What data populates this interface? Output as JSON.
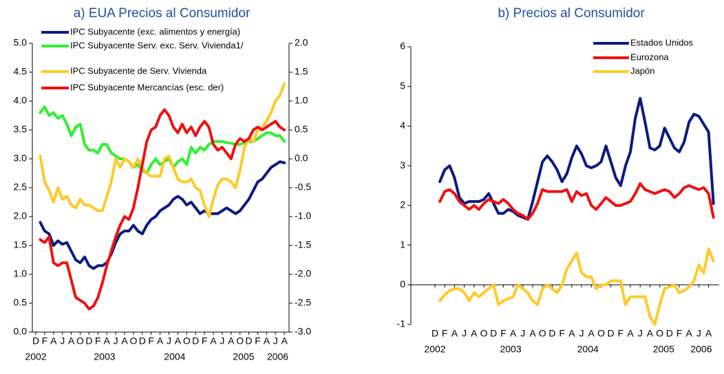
{
  "chart_data": [
    {
      "type": "line",
      "title": "a) EUA Precios al Consumidor",
      "legend": "upper left",
      "categories": [
        "D",
        null,
        "F",
        null,
        "A",
        null,
        "J",
        null,
        "A",
        null,
        "O",
        null,
        "D",
        null,
        "F",
        null,
        "A",
        null,
        "J",
        null,
        "A",
        null,
        "O",
        null,
        "D",
        null,
        "F",
        null,
        "A",
        null,
        "J",
        null,
        "A",
        null,
        "O",
        null,
        "D",
        null,
        "F",
        null,
        "A",
        null,
        "J",
        null,
        "A",
        null,
        "O",
        null,
        "D",
        null,
        "F",
        null,
        "A",
        null,
        "J",
        null,
        "A"
      ],
      "year_labels": [
        "2002",
        "2003",
        "2004",
        "2005",
        "2006"
      ],
      "ylim": [
        0,
        5
      ],
      "yticks": [
        {
          "value": 0,
          "label": "0.0"
        },
        {
          "value": 0.5,
          "label": "0.5"
        },
        {
          "value": 1,
          "label": "1.0"
        },
        {
          "value": 1.5,
          "label": "1.5"
        },
        {
          "value": 2,
          "label": "2.0"
        },
        {
          "value": 2.5,
          "label": "2.5"
        },
        {
          "value": 3,
          "label": "3.0"
        },
        {
          "value": 3.5,
          "label": "3.5"
        },
        {
          "value": 4,
          "label": "4.0"
        },
        {
          "value": 4.5,
          "label": "4.5"
        },
        {
          "value": 5,
          "label": "5.0"
        }
      ],
      "y2lim": [
        -3,
        2
      ],
      "y2ticks": [
        {
          "value": -3,
          "label": "-3.0"
        },
        {
          "value": -2.5,
          "label": "-2.5"
        },
        {
          "value": -2,
          "label": "-2.0"
        },
        {
          "value": -1.5,
          "label": "-1.5"
        },
        {
          "value": -1,
          "label": "-1.0"
        },
        {
          "value": -0.5,
          "label": "-0.5"
        },
        {
          "value": 0,
          "label": "0.0"
        },
        {
          "value": 0.5,
          "label": "0.5"
        },
        {
          "value": 1,
          "label": "1.0"
        },
        {
          "value": 1.5,
          "label": "1.5"
        },
        {
          "value": 2,
          "label": "2.0"
        }
      ],
      "series": [
        {
          "name": "IPC Subyacente (exc. alimentos y energía)",
          "color": "#0b1a80",
          "values": [
            null,
            1.9,
            1.75,
            1.7,
            1.5,
            1.58,
            1.52,
            1.55,
            1.4,
            1.25,
            1.2,
            1.3,
            1.15,
            1.1,
            1.15,
            1.15,
            1.2,
            1.35,
            1.55,
            1.7,
            1.75,
            1.75,
            1.85,
            1.75,
            1.7,
            1.85,
            1.95,
            2.0,
            2.1,
            2.15,
            2.2,
            2.3,
            2.35,
            2.3,
            2.2,
            2.25,
            2.15,
            2.05,
            2.1,
            2.05,
            2.05,
            2.05,
            2.1,
            2.15,
            2.1,
            2.05,
            2.1,
            2.2,
            2.3,
            2.45,
            2.6,
            2.65,
            2.75,
            2.85,
            2.9,
            2.95,
            2.93
          ]
        },
        {
          "name": "IPC Subyacente Serv. exc. Serv. Vivienda1/",
          "color": "#33ee33",
          "values": [
            null,
            3.8,
            3.9,
            3.75,
            3.8,
            3.7,
            3.75,
            3.6,
            3.4,
            3.55,
            3.6,
            3.25,
            3.15,
            3.15,
            3.1,
            3.25,
            3.25,
            3.1,
            3.05,
            3.0,
            3.0,
            2.95,
            2.85,
            2.9,
            2.8,
            2.75,
            2.9,
            3.0,
            2.9,
            2.95,
            3.0,
            2.85,
            2.95,
            3.0,
            2.9,
            3.2,
            3.1,
            3.2,
            3.15,
            3.25,
            3.3,
            3.3,
            3.3,
            3.28,
            3.27,
            3.25,
            3.25,
            3.28,
            3.3,
            3.3,
            3.35,
            3.4,
            3.45,
            3.45,
            3.4,
            3.4,
            3.3
          ]
        },
        {
          "name": "IPC Subyacente de Serv. Vivienda",
          "color": "#ffc928",
          "values": [
            null,
            3.05,
            2.6,
            2.45,
            2.25,
            2.5,
            2.3,
            2.35,
            2.2,
            2.15,
            2.3,
            2.2,
            2.2,
            2.15,
            2.1,
            2.1,
            2.35,
            2.6,
            3.0,
            2.85,
            3.0,
            2.95,
            2.85,
            3.0,
            2.85,
            2.75,
            2.7,
            2.7,
            2.7,
            3.0,
            3.05,
            2.85,
            2.65,
            2.6,
            2.6,
            2.65,
            2.5,
            2.45,
            2.2,
            2.0,
            2.3,
            2.55,
            2.65,
            2.65,
            2.6,
            2.5,
            2.8,
            3.2,
            3.35,
            3.3,
            3.5,
            3.55,
            3.65,
            3.8,
            4.0,
            4.1,
            4.3
          ]
        },
        {
          "name": "IPC Subyacente Mercancías (esc. der)",
          "color": "#ee1111",
          "axis": "y2",
          "values": [
            null,
            -1.4,
            -1.45,
            -1.35,
            -1.8,
            -1.85,
            -1.8,
            -1.8,
            -2.1,
            -2.4,
            -2.45,
            -2.5,
            -2.6,
            -2.55,
            -2.4,
            -2.15,
            -1.85,
            -1.6,
            -1.35,
            -1.15,
            -1.0,
            -1.05,
            -0.85,
            -0.5,
            -0.1,
            0.3,
            0.5,
            0.55,
            0.75,
            0.85,
            0.75,
            0.55,
            0.45,
            0.6,
            0.45,
            0.55,
            0.4,
            0.55,
            0.65,
            0.55,
            0.25,
            0.15,
            0.2,
            0.1,
            0.0,
            0.25,
            0.35,
            0.3,
            0.35,
            0.5,
            0.55,
            0.5,
            0.55,
            0.6,
            0.65,
            0.55,
            0.5
          ]
        }
      ]
    },
    {
      "type": "line",
      "title": "b) Precios al Consumidor",
      "legend": "upper right",
      "categories": [
        "D",
        null,
        "F",
        null,
        "A",
        null,
        "J",
        null,
        "A",
        null,
        "O",
        null,
        "D",
        null,
        "F",
        null,
        "A",
        null,
        "J",
        null,
        "A",
        null,
        "O",
        null,
        "D",
        null,
        "F",
        null,
        "A",
        null,
        "J",
        null,
        "A",
        null,
        "O",
        null,
        "D",
        null,
        "F",
        null,
        "A",
        null,
        "J",
        null,
        "A",
        null,
        "O",
        null,
        "D",
        null,
        "F",
        null,
        "A",
        null,
        "J",
        null,
        "A",
        null
      ],
      "year_labels": [
        "2002",
        "2003",
        "2004",
        "2005",
        "2006"
      ],
      "ylim": [
        -1,
        6
      ],
      "yticks": [
        -1,
        0,
        1,
        2,
        3,
        4,
        5,
        6
      ],
      "series": [
        {
          "name": "Estados Unidos",
          "color": "#0b1a80",
          "values": [
            null,
            2.6,
            2.9,
            3.0,
            2.7,
            2.2,
            2.05,
            2.1,
            2.1,
            2.1,
            2.15,
            2.3,
            2.05,
            1.8,
            1.8,
            1.9,
            1.85,
            1.75,
            1.7,
            1.65,
            2.1,
            2.6,
            3.1,
            3.25,
            3.1,
            2.9,
            2.6,
            2.8,
            3.2,
            3.5,
            3.3,
            3.0,
            2.95,
            3.0,
            3.1,
            3.5,
            3.1,
            2.7,
            2.5,
            3.0,
            3.35,
            4.2,
            4.7,
            4.1,
            3.45,
            3.4,
            3.5,
            3.95,
            3.7,
            3.45,
            3.35,
            3.6,
            4.1,
            4.3,
            4.25,
            4.05,
            3.85,
            2.05
          ]
        },
        {
          "name": "Eurozona",
          "color": "#ee1111",
          "values": [
            null,
            2.1,
            2.35,
            2.4,
            2.3,
            2.1,
            2.0,
            1.9,
            2.0,
            1.9,
            2.05,
            2.15,
            2.1,
            2.05,
            2.15,
            2.05,
            1.9,
            1.8,
            1.75,
            1.65,
            1.8,
            2.05,
            2.4,
            2.35,
            2.35,
            2.35,
            2.35,
            2.4,
            2.1,
            2.35,
            2.25,
            2.3,
            2.0,
            1.9,
            2.05,
            2.2,
            2.1,
            2.0,
            2.0,
            2.05,
            2.1,
            2.3,
            2.55,
            2.4,
            2.35,
            2.3,
            2.35,
            2.4,
            2.35,
            2.2,
            2.3,
            2.45,
            2.5,
            2.45,
            2.4,
            2.45,
            2.3,
            1.7
          ]
        },
        {
          "name": "Japón",
          "color": "#ffc928",
          "values": [
            null,
            -0.4,
            -0.25,
            -0.15,
            -0.1,
            -0.1,
            -0.2,
            -0.4,
            -0.2,
            -0.3,
            -0.2,
            -0.1,
            0.0,
            -0.5,
            -0.4,
            -0.35,
            -0.3,
            0.0,
            -0.1,
            -0.2,
            -0.4,
            -0.5,
            -0.1,
            0.0,
            -0.1,
            -0.2,
            0.0,
            0.4,
            0.6,
            0.8,
            0.3,
            0.2,
            0.2,
            -0.1,
            0.0,
            0.0,
            0.1,
            0.1,
            0.1,
            -0.5,
            -0.3,
            -0.3,
            -0.3,
            -0.3,
            -0.8,
            -1.0,
            -0.5,
            -0.1,
            -0.05,
            0.0,
            -0.2,
            -0.15,
            -0.05,
            0.1,
            0.5,
            0.3,
            0.9,
            0.6
          ]
        }
      ]
    }
  ]
}
